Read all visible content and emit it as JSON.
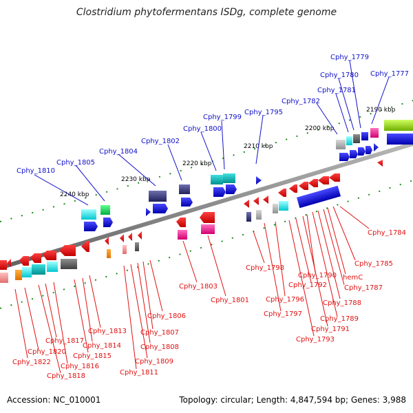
{
  "title": "Clostridium phytofermentans ISDg, complete genome",
  "footer": {
    "accession": "Accession: NC_010001",
    "summary": "Topology: circular; Length: 4,847,594 bp; Genes: 3,988"
  },
  "colors": {
    "backbone": "#8c8c8c",
    "label_blue": "#1010c8",
    "label_red": "#e01010",
    "tick_green": "#1a8a1a"
  },
  "scale_labels": [
    "2190 kbp",
    "2200 kbp",
    "2210 kbp",
    "2220 kbp",
    "2230 kbp",
    "2240 kbp"
  ],
  "top_labels": [
    "Cphy_1779",
    "Cphy_1780",
    "Cphy_1777",
    "Cphy_1781",
    "Cphy_1782",
    "Cphy_1795",
    "Cphy_1799",
    "Cphy_1800",
    "Cphy_1802",
    "Cphy_1804",
    "Cphy_1805",
    "Cphy_1810"
  ],
  "bottom_labels": [
    "Cphy_1784",
    "Cphy_1785",
    "hemC",
    "Cphy_1787",
    "Cphy_1788",
    "Cphy_1789",
    "Cphy_1790",
    "Cphy_1791",
    "Cphy_1792",
    "Cphy_1793",
    "Cphy_1796",
    "Cphy_1797",
    "Cphy_1798",
    "Cphy_1801",
    "Cphy_1803",
    "Cphy_1806",
    "Cphy_1807",
    "Cphy_1808",
    "Cphy_1809",
    "Cphy_1811",
    "Cphy_1813",
    "Cphy_1814",
    "Cphy_1815",
    "Cphy_1816",
    "Cphy_1817",
    "Cphy_1818",
    "Cphy_1820",
    "Cphy_1822"
  ]
}
